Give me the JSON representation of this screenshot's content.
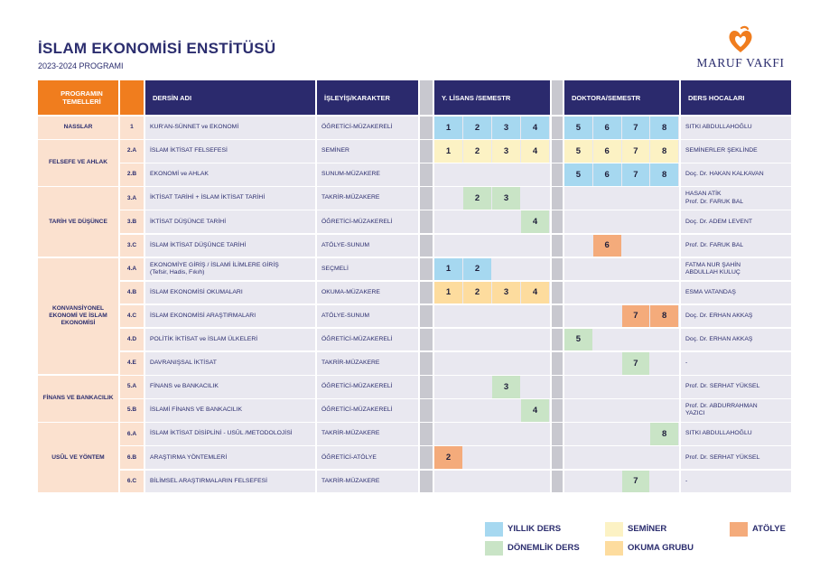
{
  "header": {
    "title": "İSLAM EKONOMİSİ ENSTİTÜSÜ",
    "subtitle": "2023-2024 PROGRAMI",
    "logo_text": "MARUF VAKFI"
  },
  "columns": {
    "temel": "PROGRAMIN TEMELLERİ",
    "ders": "DERSİN ADI",
    "isleyis": "İŞLEYİŞ/KARAKTER",
    "ylisans": "Y. LİSANS /SEMESTR",
    "doktora": "DOKTORA/SEMESTR",
    "hoca": "DERS HOCALARI"
  },
  "colors": {
    "yillik": "#a6d8f0",
    "seminer": "#fcf2c4",
    "donemlik": "#c9e4c6",
    "okuma": "#fddc9e",
    "atolye": "#f4ab7b"
  },
  "groups": [
    {
      "label": "NASSLAR",
      "rows": 1
    },
    {
      "label": "FELSEFE VE AHLAK",
      "rows": 2
    },
    {
      "label": "TARİH VE DÜŞÜNCE",
      "rows": 3
    },
    {
      "label": "KONVANSİYONEL EKONOMİ VE İSLAM EKONOMİSİ",
      "rows": 5
    },
    {
      "label": "FİNANS VE BANKACILIK",
      "rows": 2
    },
    {
      "label": "USÛL VE YÖNTEM",
      "rows": 3
    }
  ],
  "rows": [
    {
      "code": "1",
      "ders": "KUR'AN-SÜNNET ve EKONOMİ",
      "isleyis": "ÖĞRETİCİ-MÜZAKERELİ",
      "hoca": "SITKI ABDULLAHOĞLU",
      "ylisans": [
        {
          "n": "1",
          "t": "yillik"
        },
        {
          "n": "2",
          "t": "yillik"
        },
        {
          "n": "3",
          "t": "yillik"
        },
        {
          "n": "4",
          "t": "yillik"
        }
      ],
      "doktora": [
        {
          "n": "5",
          "t": "yillik"
        },
        {
          "n": "6",
          "t": "yillik"
        },
        {
          "n": "7",
          "t": "yillik"
        },
        {
          "n": "8",
          "t": "yillik"
        }
      ]
    },
    {
      "code": "2.A",
      "ders": "İSLAM İKTİSAT FELSEFESİ",
      "isleyis": "SEMİNER",
      "hoca": "SEMİNERLER ŞEKLİNDE",
      "ylisans": [
        {
          "n": "1",
          "t": "seminer"
        },
        {
          "n": "2",
          "t": "seminer"
        },
        {
          "n": "3",
          "t": "seminer"
        },
        {
          "n": "4",
          "t": "seminer"
        }
      ],
      "doktora": [
        {
          "n": "5",
          "t": "seminer"
        },
        {
          "n": "6",
          "t": "seminer"
        },
        {
          "n": "7",
          "t": "seminer"
        },
        {
          "n": "8",
          "t": "seminer"
        }
      ]
    },
    {
      "code": "2.B",
      "ders": "EKONOMİ ve AHLAK",
      "isleyis": "SUNUM-MÜZAKERE",
      "hoca": "Doç. Dr. HAKAN KALKAVAN",
      "ylisans": [
        null,
        null,
        null,
        null
      ],
      "doktora": [
        {
          "n": "5",
          "t": "yillik"
        },
        {
          "n": "6",
          "t": "yillik"
        },
        {
          "n": "7",
          "t": "yillik"
        },
        {
          "n": "8",
          "t": "yillik"
        }
      ]
    },
    {
      "code": "3.A",
      "ders": "İKTİSAT TARİHİ +   İSLAM İKTİSAT TARİHİ",
      "isleyis": "TAKRİR-MÜZAKERE",
      "hoca": "HASAN ATİK\nProf. Dr. FARUK BAL",
      "ylisans": [
        null,
        {
          "n": "2",
          "t": "donemlik"
        },
        {
          "n": "3",
          "t": "donemlik"
        },
        null
      ],
      "doktora": [
        null,
        null,
        null,
        null
      ]
    },
    {
      "code": "3.B",
      "ders": "İKTİSAT DÜŞÜNCE TARİHİ",
      "isleyis": "ÖĞRETİCİ-MÜZAKERELİ",
      "hoca": "Doç. Dr. ADEM LEVENT",
      "ylisans": [
        null,
        null,
        null,
        {
          "n": "4",
          "t": "donemlik"
        }
      ],
      "doktora": [
        null,
        null,
        null,
        null
      ]
    },
    {
      "code": "3.C",
      "ders": "İSLAM İKTİSAT DÜŞÜNCE TARİHİ",
      "isleyis": "ATÖLYE-SUNUM",
      "hoca": "Prof. Dr. FARUK BAL",
      "ylisans": [
        null,
        null,
        null,
        null
      ],
      "doktora": [
        null,
        {
          "n": "6",
          "t": "atolye"
        },
        null,
        null
      ]
    },
    {
      "code": "4.A",
      "ders": "EKONOMİYE GİRİŞ / İSLAMİ İLİMLERE GİRİŞ\n(Tefsir, Hadis, Fıkıh)",
      "isleyis": "SEÇMELİ",
      "hoca": "FATMA NUR ŞAHİN\nABDULLAH KULUÇ",
      "ylisans": [
        {
          "n": "1",
          "t": "yillik"
        },
        {
          "n": "2",
          "t": "yillik"
        },
        null,
        null
      ],
      "doktora": [
        null,
        null,
        null,
        null
      ]
    },
    {
      "code": "4.B",
      "ders": "İSLAM EKONOMİSİ OKUMALARI",
      "isleyis": "OKUMA-MÜZAKERE",
      "hoca": "ESMA VATANDAŞ",
      "ylisans": [
        {
          "n": "1",
          "t": "okuma"
        },
        {
          "n": "2",
          "t": "okuma"
        },
        {
          "n": "3",
          "t": "okuma"
        },
        {
          "n": "4",
          "t": "okuma"
        }
      ],
      "doktora": [
        null,
        null,
        null,
        null
      ]
    },
    {
      "code": "4.C",
      "ders": "İSLAM EKONOMİSİ ARAŞTIRMALARI",
      "isleyis": "ATÖLYE-SUNUM",
      "hoca": "Doç. Dr. ERHAN AKKAŞ",
      "ylisans": [
        null,
        null,
        null,
        null
      ],
      "doktora": [
        null,
        null,
        {
          "n": "7",
          "t": "atolye"
        },
        {
          "n": "8",
          "t": "atolye"
        }
      ]
    },
    {
      "code": "4.D",
      "ders": "POLİTİK İKTİSAT ve İSLAM ÜLKELERİ",
      "isleyis": "ÖĞRETİCİ-MÜZAKERELİ",
      "hoca": "Doç. Dr. ERHAN AKKAŞ",
      "ylisans": [
        null,
        null,
        null,
        null
      ],
      "doktora": [
        {
          "n": "5",
          "t": "donemlik"
        },
        null,
        null,
        null
      ]
    },
    {
      "code": "4.E",
      "ders": "DAVRANIŞSAL İKTİSAT",
      "isleyis": "TAKRİR-MÜZAKERE",
      "hoca": "-",
      "ylisans": [
        null,
        null,
        null,
        null
      ],
      "doktora": [
        null,
        null,
        {
          "n": "7",
          "t": "donemlik"
        },
        null
      ]
    },
    {
      "code": "5.A",
      "ders": "FİNANS ve BANKACILIK",
      "isleyis": "ÖĞRETİCİ-MÜZAKERELİ",
      "hoca": "Prof. Dr. SERHAT YÜKSEL",
      "ylisans": [
        null,
        null,
        {
          "n": "3",
          "t": "donemlik"
        },
        null
      ],
      "doktora": [
        null,
        null,
        null,
        null
      ]
    },
    {
      "code": "5.B",
      "ders": "İSLAMİ FİNANS VE BANKACILIK",
      "isleyis": "ÖĞRETİCİ-MÜZAKERELİ",
      "hoca": "Prof. Dr. ABDURRAHMAN\nYAZICI",
      "ylisans": [
        null,
        null,
        null,
        {
          "n": "4",
          "t": "donemlik"
        }
      ],
      "doktora": [
        null,
        null,
        null,
        null
      ]
    },
    {
      "code": "6.A",
      "ders": "İSLAM İKTİSAT DİSİPLİNİ - USÛL /METODOLOJİSİ",
      "isleyis": "TAKRİR-MÜZAKERE",
      "hoca": "SITKI ABDULLAHOĞLU",
      "ylisans": [
        null,
        null,
        null,
        null
      ],
      "doktora": [
        null,
        null,
        null,
        {
          "n": "8",
          "t": "donemlik"
        }
      ]
    },
    {
      "code": "6.B",
      "ders": "ARAŞTIRMA YÖNTEMLERİ",
      "isleyis": "ÖĞRETİCİ-ATÖLYE",
      "hoca": "Prof. Dr. SERHAT YÜKSEL",
      "ylisans": [
        {
          "n": "2",
          "t": "atolye"
        },
        null,
        null,
        null
      ],
      "doktora": [
        null,
        null,
        null,
        null
      ]
    },
    {
      "code": "6.C",
      "ders": "BİLİMSEL ARAŞTIRMALARIN FELSEFESİ",
      "isleyis": "TAKRİR-MÜZAKERE",
      "hoca": "-",
      "ylisans": [
        null,
        null,
        null,
        null
      ],
      "doktora": [
        null,
        null,
        {
          "n": "7",
          "t": "donemlik"
        },
        null
      ]
    }
  ],
  "legend": [
    {
      "label": "YILLIK DERS",
      "t": "yillik"
    },
    {
      "label": "SEMİNER",
      "t": "seminer"
    },
    {
      "label": "ATÖLYE",
      "t": "atolye"
    },
    {
      "label": "DÖNEMLİK DERS",
      "t": "donemlik"
    },
    {
      "label": "OKUMA GRUBU",
      "t": "okuma"
    }
  ]
}
